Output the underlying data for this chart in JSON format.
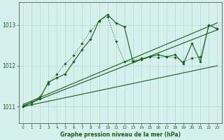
{
  "xlabel": "Graphe pression niveau de la mer (hPa)",
  "xlim": [
    -0.5,
    23.5
  ],
  "ylim": [
    1010.6,
    1013.55
  ],
  "yticks": [
    1011,
    1012,
    1013
  ],
  "xticks": [
    0,
    1,
    2,
    3,
    4,
    5,
    6,
    7,
    8,
    9,
    10,
    11,
    12,
    13,
    14,
    15,
    16,
    17,
    18,
    19,
    20,
    21,
    22,
    23
  ],
  "background_color": "#d6f0ee",
  "grid_color": "#b0d8cc",
  "line_color": "#1a5c1a",
  "bg_outer": "#d6f0ee",
  "series_dotted": {
    "x": [
      0,
      1,
      2,
      3,
      4,
      5,
      6,
      7,
      8,
      9,
      10,
      11,
      12,
      13,
      14,
      15,
      16,
      17,
      18,
      19,
      20,
      21,
      22,
      23
    ],
    "y": [
      1011.0,
      1011.05,
      1011.25,
      1011.55,
      1011.8,
      1012.05,
      1012.25,
      1012.55,
      1012.85,
      1013.1,
      1013.2,
      1012.6,
      1012.1,
      1012.12,
      1012.18,
      1012.22,
      1012.2,
      1012.22,
      1012.2,
      1012.1,
      1012.18,
      1012.22,
      1013.0,
      1012.9
    ]
  },
  "series_main": {
    "x": [
      0,
      1,
      2,
      3,
      4,
      5,
      6,
      7,
      8,
      9,
      10,
      11,
      12,
      13,
      14,
      15,
      16,
      17,
      18,
      19,
      20,
      21,
      22,
      23
    ],
    "y": [
      1011.0,
      1011.1,
      1011.2,
      1011.6,
      1011.7,
      1011.8,
      1012.1,
      1012.4,
      1012.65,
      1013.1,
      1013.25,
      1013.05,
      1012.95,
      1012.1,
      1012.15,
      1012.22,
      1012.27,
      1012.22,
      1012.27,
      1012.05,
      1012.55,
      1012.1,
      1013.0,
      1012.9
    ]
  },
  "line1": {
    "x": [
      0,
      23
    ],
    "y": [
      1011.05,
      1013.05
    ]
  },
  "line2": {
    "x": [
      0,
      23
    ],
    "y": [
      1011.02,
      1012.88
    ]
  },
  "line3": {
    "x": [
      0,
      23
    ],
    "y": [
      1011.0,
      1012.0
    ]
  }
}
